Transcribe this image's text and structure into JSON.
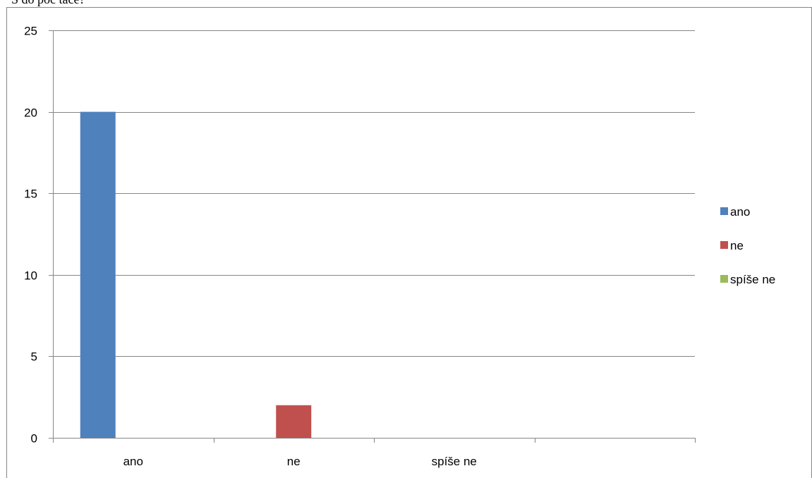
{
  "caption_fragment": "S do poč tace?",
  "chart_data": {
    "type": "bar",
    "categories": [
      "ano",
      "ne",
      "spíše ne"
    ],
    "series": [
      {
        "name": "ano",
        "values": [
          20,
          null,
          null
        ],
        "color": "#4F81BD"
      },
      {
        "name": "ne",
        "values": [
          null,
          2,
          null
        ],
        "color": "#C0504D"
      },
      {
        "name": "spíše ne",
        "values": [
          null,
          null,
          0
        ],
        "color": "#9BBB59"
      }
    ],
    "title": "",
    "xlabel": "",
    "ylabel": "",
    "ylim": [
      0,
      25
    ],
    "yticks": [
      0,
      5,
      10,
      15,
      20,
      25
    ],
    "grid": true,
    "legend": "right"
  }
}
